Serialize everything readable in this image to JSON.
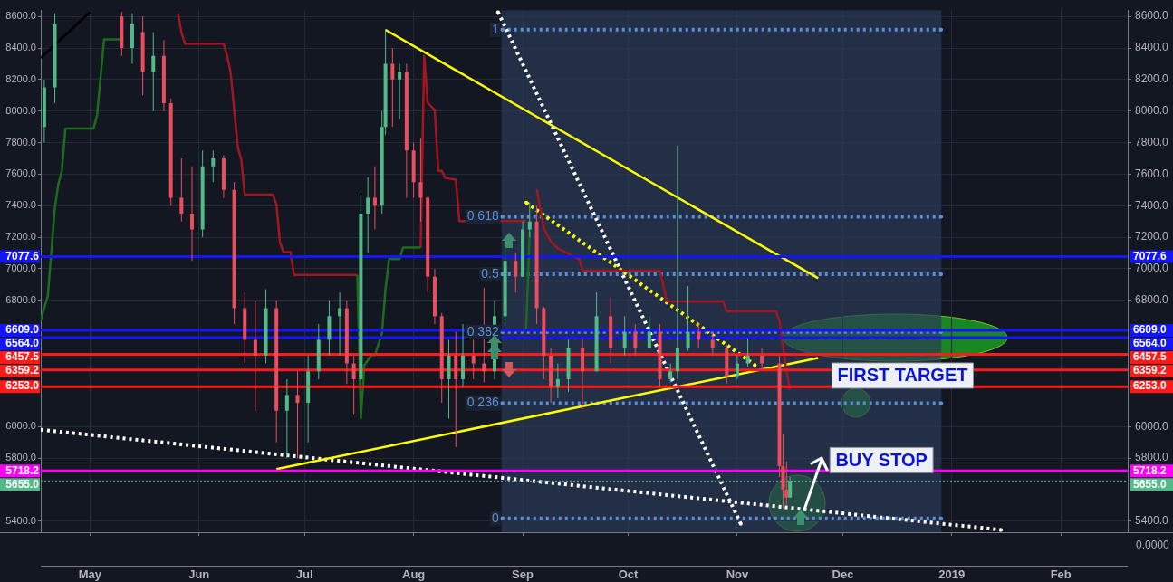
{
  "chart_data": {
    "type": "candlestick",
    "x": [
      "2018-04-18",
      "2018-04-21",
      "2018-05-10",
      "2018-05-13",
      "2018-05-16",
      "2018-05-19",
      "2018-05-22",
      "2018-05-24",
      "2018-05-27",
      "2018-05-30",
      "2018-06-02",
      "2018-06-05",
      "2018-06-08",
      "2018-06-11",
      "2018-06-14",
      "2018-06-17",
      "2018-06-20",
      "2018-06-23",
      "2018-06-26",
      "2018-06-29",
      "2018-07-02",
      "2018-07-05",
      "2018-07-08",
      "2018-07-11",
      "2018-07-13",
      "2018-07-15",
      "2018-07-17",
      "2018-07-19",
      "2018-07-21",
      "2018-07-23",
      "2018-07-24",
      "2018-07-26",
      "2018-07-28",
      "2018-07-30",
      "2018-08-01",
      "2018-08-03",
      "2018-08-05",
      "2018-08-07",
      "2018-08-09",
      "2018-08-11",
      "2018-08-13",
      "2018-08-15",
      "2018-08-18",
      "2018-08-21",
      "2018-08-24",
      "2018-08-27",
      "2018-08-30",
      "2018-09-01",
      "2018-09-03",
      "2018-09-05",
      "2018-09-07",
      "2018-09-09",
      "2018-09-11",
      "2018-09-14",
      "2018-09-18",
      "2018-09-22",
      "2018-09-26",
      "2018-09-30",
      "2018-10-03",
      "2018-10-07",
      "2018-10-10",
      "2018-10-13",
      "2018-10-15",
      "2018-10-18",
      "2018-10-21",
      "2018-10-25",
      "2018-10-29",
      "2018-11-01",
      "2018-11-04",
      "2018-11-08",
      "2018-11-13",
      "2018-11-14",
      "2018-11-15",
      "2018-11-16"
    ],
    "ohlc": [
      [
        7900,
        8200,
        7800,
        8150
      ],
      [
        8150,
        8620,
        8050,
        8550
      ],
      [
        8600,
        8630,
        8350,
        8400
      ],
      [
        8400,
        8620,
        8300,
        8550
      ],
      [
        8500,
        8600,
        8100,
        8250
      ],
      [
        8250,
        8500,
        8000,
        8350
      ],
      [
        8350,
        8450,
        8000,
        8050
      ],
      [
        8050,
        8080,
        7400,
        7450
      ],
      [
        7450,
        7700,
        7300,
        7350
      ],
      [
        7350,
        7650,
        7050,
        7250
      ],
      [
        7250,
        7750,
        7200,
        7650
      ],
      [
        7650,
        7750,
        7550,
        7700
      ],
      [
        7700,
        7720,
        7450,
        7500
      ],
      [
        7500,
        7550,
        6650,
        6750
      ],
      [
        6750,
        6850,
        6400,
        6550
      ],
      [
        6550,
        6800,
        6100,
        6450
      ],
      [
        6450,
        6870,
        6400,
        6750
      ],
      [
        6750,
        6800,
        5900,
        6100
      ],
      [
        6100,
        6300,
        5800,
        6200
      ],
      [
        6200,
        6350,
        5800,
        6150
      ],
      [
        6150,
        6450,
        5900,
        6350
      ],
      [
        6350,
        6650,
        6300,
        6550
      ],
      [
        6550,
        6800,
        6450,
        6700
      ],
      [
        6700,
        6850,
        6450,
        6750
      ],
      [
        6750,
        6800,
        6270,
        6400
      ],
      [
        6400,
        6450,
        6080,
        6300
      ],
      [
        6300,
        7470,
        6280,
        7350
      ],
      [
        7350,
        7580,
        7100,
        7450
      ],
      [
        7450,
        7650,
        7250,
        7400
      ],
      [
        7400,
        8000,
        7350,
        7900
      ],
      [
        7900,
        8520,
        7850,
        8300
      ],
      [
        8300,
        8400,
        7900,
        8200
      ],
      [
        8200,
        8300,
        7950,
        8250
      ],
      [
        8250,
        8300,
        7450,
        7750
      ],
      [
        7750,
        7800,
        7450,
        7550
      ],
      [
        7550,
        7830,
        7300,
        7450
      ],
      [
        7450,
        7460,
        6850,
        6950
      ],
      [
        6950,
        7000,
        6650,
        6700
      ],
      [
        6700,
        6720,
        6150,
        6300
      ],
      [
        6300,
        6550,
        6050,
        6450
      ],
      [
        6450,
        6600,
        5870,
        6300
      ],
      [
        6300,
        6650,
        6250,
        6450
      ],
      [
        6450,
        6550,
        6300,
        6400
      ],
      [
        6400,
        6880,
        6280,
        6350
      ],
      [
        6350,
        6800,
        6300,
        6700
      ],
      [
        6700,
        7150,
        6650,
        7050
      ],
      [
        7050,
        7100,
        6850,
        6950
      ],
      [
        6950,
        7300,
        6950,
        7250
      ],
      [
        7250,
        7420,
        7200,
        7300
      ],
      [
        7300,
        7400,
        6650,
        6750
      ],
      [
        6750,
        6760,
        6300,
        6450
      ],
      [
        6450,
        6500,
        6150,
        6250
      ],
      [
        6250,
        6400,
        6180,
        6300
      ],
      [
        6300,
        6550,
        6220,
        6500
      ],
      [
        6500,
        6550,
        6110,
        6350
      ],
      [
        6350,
        6850,
        6350,
        6700
      ],
      [
        6700,
        6820,
        6400,
        6500
      ],
      [
        6500,
        6700,
        6450,
        6600
      ],
      [
        6600,
        6650,
        6450,
        6500
      ],
      [
        6500,
        6700,
        6500,
        6600
      ],
      [
        6600,
        6650,
        6250,
        6300
      ],
      [
        6300,
        6400,
        6280,
        6350
      ],
      [
        6350,
        7780,
        6300,
        6500
      ],
      [
        6500,
        6890,
        6480,
        6600
      ],
      [
        6600,
        6660,
        6500,
        6550
      ],
      [
        6550,
        6600,
        6450,
        6500
      ],
      [
        6500,
        6520,
        6270,
        6320
      ],
      [
        6320,
        6450,
        6300,
        6400
      ],
      [
        6400,
        6560,
        6380,
        6450
      ],
      [
        6450,
        6500,
        6360,
        6400
      ],
      [
        6400,
        6450,
        5680,
        5750
      ],
      [
        5750,
        5950,
        5480,
        5600
      ],
      [
        5600,
        5780,
        5500,
        5550
      ],
      [
        5550,
        5680,
        5550,
        5655
      ]
    ],
    "colors": [
      "#53b987",
      "#53b987",
      "#eb4d5c",
      "#53b987",
      "#eb4d5c",
      "#53b987",
      "#eb4d5c",
      "#eb4d5c",
      "#eb4d5c",
      "#eb4d5c",
      "#53b987",
      "#53b987",
      "#eb4d5c",
      "#eb4d5c",
      "#eb4d5c",
      "#eb4d5c",
      "#53b987",
      "#eb4d5c",
      "#53b987",
      "#eb4d5c",
      "#53b987",
      "#53b987",
      "#53b987",
      "#53b987",
      "#eb4d5c",
      "#eb4d5c",
      "#53b987",
      "#53b987",
      "#eb4d5c",
      "#53b987",
      "#53b987",
      "#eb4d5c",
      "#53b987",
      "#eb4d5c",
      "#eb4d5c",
      "#eb4d5c",
      "#eb4d5c",
      "#eb4d5c",
      "#eb4d5c",
      "#53b987",
      "#eb4d5c",
      "#53b987",
      "#eb4d5c",
      "#eb4d5c",
      "#53b987",
      "#53b987",
      "#eb4d5c",
      "#53b987",
      "#53b987",
      "#eb4d5c",
      "#eb4d5c",
      "#eb4d5c",
      "#53b987",
      "#53b987",
      "#eb4d5c",
      "#53b987",
      "#eb4d5c",
      "#53b987",
      "#eb4d5c",
      "#53b987",
      "#eb4d5c",
      "#53b987",
      "#53b987",
      "#53b987",
      "#eb4d5c",
      "#eb4d5c",
      "#eb4d5c",
      "#53b987",
      "#53b987",
      "#eb4d5c",
      "#eb4d5c",
      "#eb4d5c",
      "#eb4d5c",
      "#53b987"
    ],
    "series": [
      {
        "type": "line",
        "color": "#000000",
        "x": [
          "2018-04-17",
          "2018-05-01"
        ],
        "values": [
          8337,
          8628
        ]
      },
      {
        "type": "line",
        "color": "#1e6b1e",
        "x": [
          "2018-04-17",
          "2018-04-19",
          "2018-04-21",
          "2018-04-22",
          "2018-04-23",
          "2018-04-24",
          "2018-05-02",
          "2018-05-03",
          "2018-05-05",
          "2018-05-10",
          "2018-05-11",
          "2018-07-16",
          "2018-07-17",
          "2018-07-18",
          "2018-07-20",
          "2018-07-21",
          "2018-07-23",
          "2018-07-24",
          "2018-07-25",
          "2018-07-28",
          "2018-07-29",
          "2018-08-03",
          "2018-08-04",
          "2018-09-02",
          "2018-09-03"
        ],
        "values": [
          6676,
          6827,
          7386,
          7537,
          7621,
          7890,
          7890,
          7973,
          8455,
          8455,
          null,
          6961,
          6054,
          6389,
          6452,
          6452,
          6592,
          6871,
          7062,
          7062,
          7135,
          7135,
          null,
          6615,
          7235
        ]
      },
      {
        "type": "line",
        "color": "#a31621",
        "x": [
          "2018-05-26",
          "2018-05-27",
          "2018-05-28",
          "2018-06-08",
          "2018-06-09",
          "2018-06-10",
          "2018-06-12",
          "2018-06-13",
          "2018-06-14",
          "2018-06-22",
          "2018-06-23",
          "2018-06-24",
          "2018-06-25",
          "2018-06-27",
          "2018-06-28",
          "2018-07-16",
          "2018-07-31",
          "2018-08-03",
          "2018-08-04",
          "2018-08-05",
          "2018-08-06",
          "2018-08-07",
          "2018-08-08",
          "2018-08-09",
          "2018-08-10",
          "2018-08-13",
          "2018-08-14",
          "2018-09-02",
          "2018-09-04",
          "2018-09-05",
          "2018-09-07",
          "2018-09-09",
          "2018-09-11",
          "2018-09-17",
          "2018-09-18",
          "2018-10-10",
          "2018-10-12",
          "2018-10-28",
          "2018-10-29",
          "2018-11-12",
          "2018-11-13",
          "2018-11-15",
          "2018-11-16"
        ],
        "values": [
          8620,
          8500,
          8427,
          8427,
          8350,
          8242,
          7772,
          7694,
          7470,
          7470,
          7408,
          7168,
          7106,
          7106,
          6961,
          6961,
          null,
          7135,
          8350,
          8052,
          8029,
          8007,
          7621,
          7621,
          7576,
          7565,
          7302,
          7302,
          null,
          7504,
          7257,
          7173,
          7129,
          7062,
          6989,
          6989,
          6793,
          6793,
          6731,
          6731,
          6670,
          6351,
          6234
        ]
      },
      {
        "type": "line",
        "color": "#ffff00",
        "x": [
          "2018-07-24",
          "2018-11-24"
        ],
        "values": [
          8515,
          6940
        ]
      },
      {
        "type": "line",
        "color": "#ffff00",
        "x": [
          "2018-06-23",
          "2018-11-24"
        ],
        "values": [
          5730,
          6435
        ]
      },
      {
        "type": "line",
        "color": "#ffff00",
        "line_style": "dotted",
        "x": [
          "2018-09-02",
          "2018-11-06"
        ],
        "values": [
          7420,
          6390
        ]
      },
      {
        "type": "line",
        "color": "#ffffff",
        "line_style": "dotted",
        "x": [
          "2018-08-25",
          "2018-11-02"
        ],
        "values": [
          8628,
          5383
        ]
      },
      {
        "type": "line",
        "color": "#ffffff",
        "line_style": "dotted",
        "x": [
          "2018-04-17",
          "2019-01-15"
        ],
        "values": [
          5980,
          5345
        ]
      },
      {
        "type": "line",
        "name": "1",
        "color": "#5b8fd9",
        "line_style": "dotted",
        "x": [
          "2018-08-26",
          "2018-12-29"
        ],
        "values": [
          8516,
          8516
        ]
      },
      {
        "type": "line",
        "name": "0.618",
        "color": "#5b8fd9",
        "line_style": "dotted",
        "x": [
          "2018-08-26",
          "2018-12-29"
        ],
        "values": [
          7330,
          7330
        ]
      },
      {
        "type": "line",
        "name": "0.5",
        "color": "#5b8fd9",
        "line_style": "dotted",
        "x": [
          "2018-08-26",
          "2018-12-29"
        ],
        "values": [
          6965,
          6965
        ]
      },
      {
        "type": "line",
        "name": "0.382",
        "color": "#5b8fd9",
        "line_style": "dotted",
        "x": [
          "2018-08-26",
          "2018-12-29"
        ],
        "values": [
          6600,
          6600
        ]
      },
      {
        "type": "line",
        "name": "0.236",
        "color": "#5b8fd9",
        "line_style": "dotted",
        "x": [
          "2018-08-26",
          "2018-12-29"
        ],
        "values": [
          6148,
          6148
        ]
      },
      {
        "type": "line",
        "name": "0",
        "color": "#5b8fd9",
        "line_style": "dotted",
        "x": [
          "2018-08-26",
          "2018-12-29"
        ],
        "values": [
          5417,
          5417
        ]
      }
    ],
    "bands": [
      {
        "axis": "x",
        "from": "2018-08-26",
        "to": "2018-12-29",
        "color": "#2a3a55"
      }
    ],
    "ref_lines": [
      {
        "axis": "y",
        "value": 7077.6,
        "label": "7077.6",
        "color": "#1414ff"
      },
      {
        "axis": "y",
        "value": 6609,
        "label": "6609.0",
        "color": "#1414ff"
      },
      {
        "axis": "y",
        "value": 6564,
        "label": "6564.0",
        "color": "#1414ff"
      },
      {
        "axis": "y",
        "value": 6457.5,
        "label": "6457.5",
        "color": "#ff1a1a"
      },
      {
        "axis": "y",
        "value": 6359.2,
        "label": "6359.2",
        "color": "#ff1a1a"
      },
      {
        "axis": "y",
        "value": 6253,
        "label": "6253.0",
        "color": "#ff1a1a"
      },
      {
        "axis": "y",
        "value": 5718.2,
        "label": "5718.2",
        "color": "#ff00ff"
      },
      {
        "axis": "y",
        "value": 5655,
        "label": "5655.0",
        "color": "#53b987",
        "line_style": "dotted"
      }
    ],
    "annotations": [
      {
        "text": "FIRST TARGET",
        "x": "2018-12-18",
        "y": 6323
      },
      {
        "text": "BUY STOP",
        "x": "2018-12-12",
        "y": 5718.2
      },
      "0.0000"
    ],
    "xlim": [
      "2018-04-17",
      "2019-02-20"
    ],
    "xticks": [
      {
        "value": "2018-05-01",
        "label": "May"
      },
      {
        "value": "2018-06-01",
        "label": "Jun"
      },
      {
        "value": "2018-07-01",
        "label": "Jul"
      },
      {
        "value": "2018-08-01",
        "label": "Aug"
      },
      {
        "value": "2018-09-01",
        "label": "Sep"
      },
      {
        "value": "2018-10-01",
        "label": "Oct"
      },
      {
        "value": "2018-11-01",
        "label": "Nov"
      },
      {
        "value": "2018-12-01",
        "label": "Dec"
      },
      {
        "value": "2019-01-01",
        "label": "2019"
      },
      {
        "value": "2019-02-01",
        "label": "Feb"
      }
    ],
    "ylim": [
      5330,
      8640
    ],
    "yticks": [
      {
        "value": 5400,
        "label": "5400.0"
      },
      {
        "value": 5800,
        "label": "5800.0"
      },
      {
        "value": 6000,
        "label": "6000.0"
      },
      {
        "value": 6800,
        "label": "6800.0"
      },
      {
        "value": 7000,
        "label": "7000.0"
      },
      {
        "value": 7200,
        "label": "7200.0"
      },
      {
        "value": 7400,
        "label": "7400.0"
      },
      {
        "value": 7600,
        "label": "7600.0"
      },
      {
        "value": 7800,
        "label": "7800.0"
      },
      {
        "value": 8000,
        "label": "8000.0"
      },
      {
        "value": 8200,
        "label": "8200.0"
      },
      {
        "value": 8400,
        "label": "8400.0"
      },
      {
        "value": 8600,
        "label": "8600.0"
      }
    ],
    "y2lim": [
      5330,
      8640
    ],
    "y2ticks": [
      {
        "value": 5400,
        "label": "5400.0"
      },
      {
        "value": 5800,
        "label": "5800.0"
      },
      {
        "value": 6000,
        "label": "6000.0"
      },
      {
        "value": 6800,
        "label": "6800.0"
      },
      {
        "value": 7000,
        "label": "7000.0"
      },
      {
        "value": 7200,
        "label": "7200.0"
      },
      {
        "value": 7400,
        "label": "7400.0"
      },
      {
        "value": 7600,
        "label": "7600.0"
      },
      {
        "value": 7800,
        "label": "7800.0"
      },
      {
        "value": 8000,
        "label": "8000.0"
      },
      {
        "value": 8200,
        "label": "8200.0"
      },
      {
        "value": 8400,
        "label": "8400.0"
      },
      {
        "value": 8600,
        "label": "8600.0"
      }
    ],
    "grid": true
  }
}
